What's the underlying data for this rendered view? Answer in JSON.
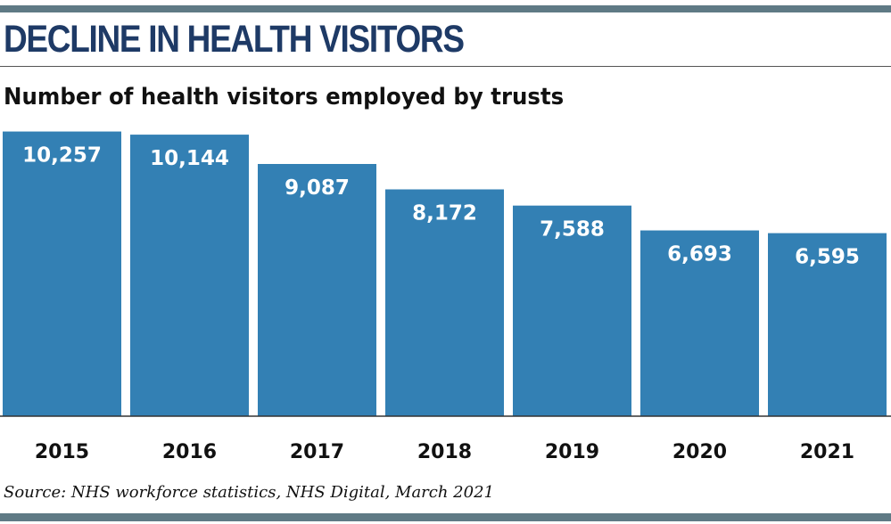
{
  "header": {
    "title": "DECLINE IN HEALTH VISITORS",
    "subtitle": "Number of health visitors employed by trusts"
  },
  "footer": {
    "source": "Source: NHS workforce statistics, NHS Digital, March 2021"
  },
  "colors": {
    "bar": "#3380b4",
    "rule": "#5f7a85",
    "title": "#1e3a66",
    "baseline": "#333333",
    "value_label": "#ffffff",
    "category_label": "#111111"
  },
  "chart_data": {
    "type": "bar",
    "title": "Number of health visitors employed by trusts",
    "xlabel": "",
    "ylabel": "",
    "categories": [
      "2015",
      "2016",
      "2017",
      "2018",
      "2019",
      "2020",
      "2021"
    ],
    "values": [
      10257,
      10144,
      9087,
      8172,
      7588,
      6693,
      6595
    ],
    "value_labels": [
      "10,257",
      "10,144",
      "9,087",
      "8,172",
      "7,588",
      "6,693",
      "6,595"
    ],
    "ylim": [
      0,
      10500
    ],
    "grid": false,
    "legend": "none"
  }
}
